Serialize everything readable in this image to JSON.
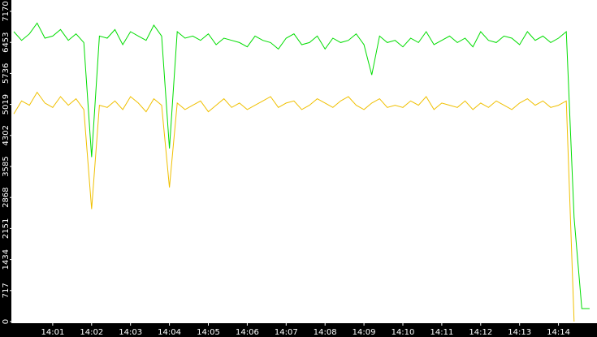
{
  "chart_data": {
    "type": "line",
    "categories": [
      null,
      null,
      null,
      null,
      null,
      "14:01",
      null,
      null,
      null,
      null,
      "14:02",
      null,
      null,
      null,
      null,
      "14:03",
      null,
      null,
      null,
      null,
      "14:04",
      null,
      null,
      null,
      null,
      "14:05",
      null,
      null,
      null,
      null,
      "14:06",
      null,
      null,
      null,
      null,
      "14:07",
      null,
      null,
      null,
      null,
      "14:08",
      null,
      null,
      null,
      null,
      "14:09",
      null,
      null,
      null,
      null,
      "14:10",
      null,
      null,
      null,
      null,
      "14:11",
      null,
      null,
      null,
      null,
      "14:12",
      null,
      null,
      null,
      null,
      "14:13",
      null,
      null,
      null,
      null,
      "14:14",
      null,
      null,
      null,
      null
    ],
    "series": [
      {
        "color": "#00dd00",
        "values": [
          6700,
          6500,
          6650,
          6900,
          6550,
          6600,
          6750,
          6500,
          6650,
          6450,
          3800,
          6600,
          6550,
          6750,
          6400,
          6700,
          6600,
          6500,
          6850,
          6600,
          4000,
          6700,
          6550,
          6600,
          6500,
          6650,
          6400,
          6550,
          6500,
          6450,
          6350,
          6600,
          6500,
          6450,
          6300,
          6550,
          6650,
          6400,
          6450,
          6600,
          6300,
          6550,
          6450,
          6500,
          6650,
          6400,
          5700,
          6600,
          6450,
          6500,
          6350,
          6550,
          6450,
          6700,
          6400,
          6500,
          6600,
          6450,
          6550,
          6350,
          6700,
          6500,
          6450,
          6600,
          6550,
          6400,
          6700,
          6500,
          6600,
          6450,
          6550,
          6700,
          2400,
          300,
          300
        ]
      },
      {
        "color": "#f0c000",
        "values": [
          4800,
          5100,
          5000,
          5300,
          5050,
          4950,
          5200,
          5000,
          5150,
          4900,
          2600,
          5000,
          4950,
          5100,
          4900,
          5200,
          5050,
          4850,
          5150,
          5000,
          3100,
          5050,
          4900,
          5000,
          5100,
          4850,
          5000,
          5150,
          4950,
          5050,
          4900,
          5000,
          5100,
          5200,
          4950,
          5050,
          5100,
          4900,
          5000,
          5150,
          5050,
          4950,
          5100,
          5200,
          5000,
          4900,
          5050,
          5150,
          4950,
          5000,
          4950,
          5100,
          5000,
          5200,
          4900,
          5050,
          5000,
          4950,
          5100,
          4900,
          5050,
          4950,
          5100,
          5000,
          4900,
          5050,
          5150,
          5000,
          5100,
          4950,
          5000,
          5100,
          0,
          null,
          null
        ]
      }
    ],
    "ylim": [
      0,
      7170
    ],
    "yticks": [
      0,
      717,
      1434,
      2151,
      2868,
      3585,
      4302,
      5019,
      5736,
      6453,
      7170
    ]
  }
}
